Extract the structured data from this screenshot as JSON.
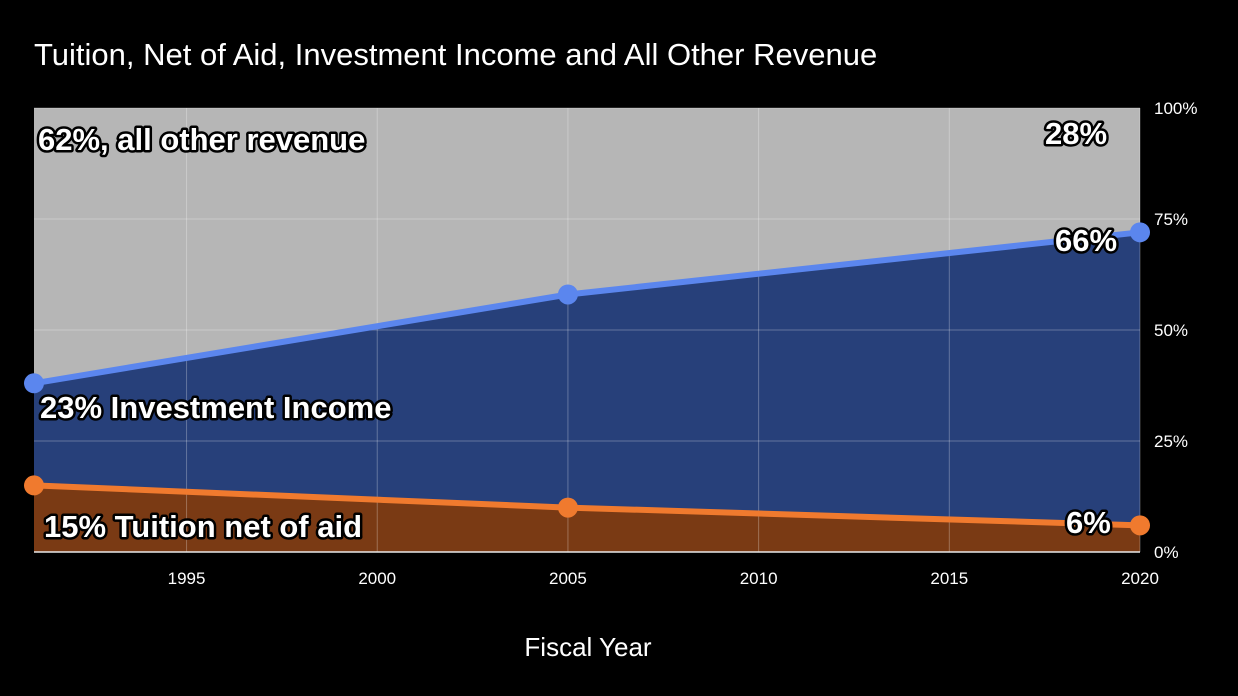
{
  "chart_data": {
    "type": "area",
    "title": "Tuition, Net of Aid, Investment Income and All Other Revenue",
    "xlabel": "Fiscal Year",
    "ylabel": "",
    "stacked": true,
    "x": [
      1991,
      2005,
      2020
    ],
    "xlim": [
      1991,
      2020
    ],
    "ylim": [
      0,
      100
    ],
    "x_ticks": [
      "1995",
      "2000",
      "2005",
      "2010",
      "2015",
      "2020"
    ],
    "y_ticks": [
      "0%",
      "25%",
      "50%",
      "75%",
      "100%"
    ],
    "grid": true,
    "series": [
      {
        "name": "Tuition net of aid",
        "values": [
          15,
          10,
          6
        ],
        "cumulative": [
          15,
          10,
          6
        ],
        "color": "#f07a2e",
        "fill": "#7a3a14"
      },
      {
        "name": "Investment Income",
        "values": [
          23,
          48,
          66
        ],
        "cumulative": [
          38,
          58,
          72
        ],
        "color": "#5b86ee",
        "fill": "#27407a"
      },
      {
        "name": "all other revenue",
        "values": [
          62,
          42,
          28
        ],
        "cumulative": [
          100,
          100,
          100
        ],
        "fill": "#b6b6b6"
      }
    ],
    "annotations": [
      {
        "text": "62%, all other revenue"
      },
      {
        "text": "28%"
      },
      {
        "text": "66%"
      },
      {
        "text": "23% Investment Income"
      },
      {
        "text": "15% Tuition net of aid"
      },
      {
        "text": "6%"
      }
    ]
  }
}
